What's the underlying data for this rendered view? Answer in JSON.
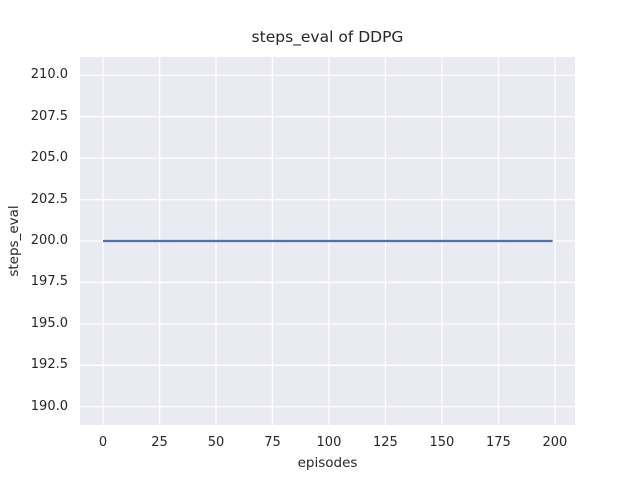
{
  "figure": {
    "background": "#ffffff"
  },
  "chart_data": {
    "type": "line",
    "title": "steps_eval of DDPG",
    "xlabel": "episodes",
    "ylabel": "steps_eval",
    "xlim": [
      -10.2,
      208.9
    ],
    "ylim": [
      188.9,
      211.1
    ],
    "grid": true,
    "legend": "none",
    "xticks": [
      {
        "v": 0,
        "label": "0"
      },
      {
        "v": 25,
        "label": "25"
      },
      {
        "v": 50,
        "label": "50"
      },
      {
        "v": 75,
        "label": "75"
      },
      {
        "v": 100,
        "label": "100"
      },
      {
        "v": 125,
        "label": "125"
      },
      {
        "v": 150,
        "label": "150"
      },
      {
        "v": 175,
        "label": "175"
      },
      {
        "v": 200,
        "label": "200"
      }
    ],
    "yticks": [
      {
        "v": 190.0,
        "label": "190.0"
      },
      {
        "v": 192.5,
        "label": "192.5"
      },
      {
        "v": 195.0,
        "label": "195.0"
      },
      {
        "v": 197.5,
        "label": "197.5"
      },
      {
        "v": 200.0,
        "label": "200.0"
      },
      {
        "v": 202.5,
        "label": "202.5"
      },
      {
        "v": 205.0,
        "label": "205.0"
      },
      {
        "v": 207.5,
        "label": "207.5"
      },
      {
        "v": 210.0,
        "label": "210.0"
      }
    ],
    "series": [
      {
        "name": "steps_eval",
        "x_start": 0,
        "x_end": 199,
        "y_constant": 200,
        "points": [
          [
            0,
            200
          ],
          [
            199,
            200
          ]
        ]
      }
    ],
    "style": {
      "axes_background": "#eaeaf2",
      "grid_color": "#ffffff",
      "grid_width": 1.3,
      "line_color": "#4c72b0",
      "line_width": 2.2,
      "text_color": "#262626"
    }
  }
}
